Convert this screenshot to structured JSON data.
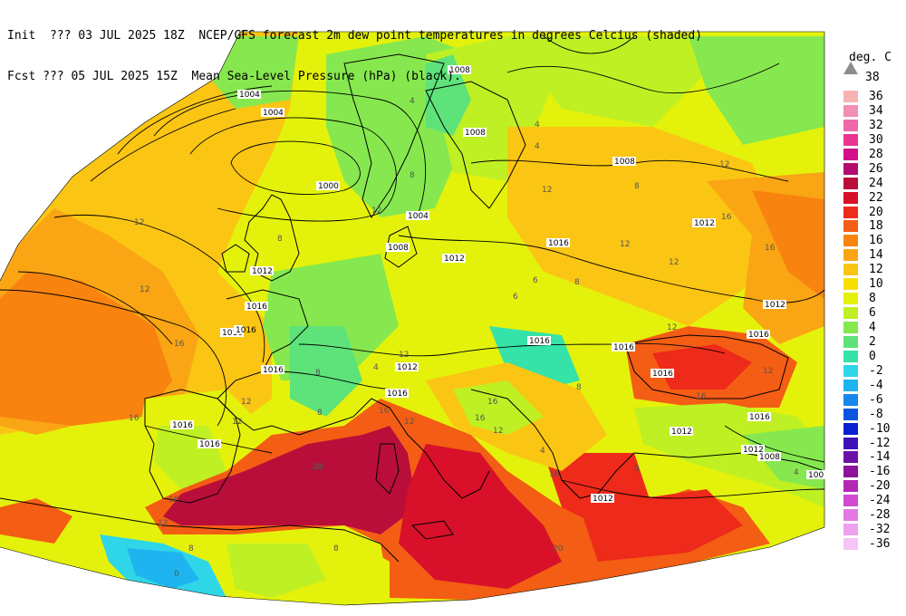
{
  "header": {
    "line1_left": "Init  ??? 03 JUL 2025 18Z",
    "line1_right": "NCEP/GFS forecast 2m dew point temperatures in degrees Celcius (shaded)",
    "line2_left": "Fcst ??? 05 JUL 2025 15Z",
    "line2_right": "Mean Sea-Level Pressure (hPa) (black)."
  },
  "legend": {
    "unit": "deg. C",
    "top_label": "38",
    "bins": [
      {
        "label": "36",
        "color": "#f7b3b3"
      },
      {
        "label": "34",
        "color": "#f28fb4"
      },
      {
        "label": "32",
        "color": "#ef68a7"
      },
      {
        "label": "30",
        "color": "#e83592"
      },
      {
        "label": "28",
        "color": "#d40f8a"
      },
      {
        "label": "26",
        "color": "#b40c6e"
      },
      {
        "label": "24",
        "color": "#b90e3a"
      },
      {
        "label": "22",
        "color": "#d8102a"
      },
      {
        "label": "20",
        "color": "#ee2a1a"
      },
      {
        "label": "18",
        "color": "#f45d14"
      },
      {
        "label": "16",
        "color": "#f8830f"
      },
      {
        "label": "14",
        "color": "#f9a514"
      },
      {
        "label": "12",
        "color": "#fbc514"
      },
      {
        "label": "10",
        "color": "#f7e000"
      },
      {
        "label": "8",
        "color": "#e4f20b"
      },
      {
        "label": "6",
        "color": "#bff023"
      },
      {
        "label": "4",
        "color": "#86e84e"
      },
      {
        "label": "2",
        "color": "#5ee27a"
      },
      {
        "label": "0",
        "color": "#35e2a8"
      },
      {
        "label": "-2",
        "color": "#2fd6e8"
      },
      {
        "label": "-4",
        "color": "#1eb4f0"
      },
      {
        "label": "-6",
        "color": "#1787ea"
      },
      {
        "label": "-8",
        "color": "#0c55e0"
      },
      {
        "label": "-10",
        "color": "#0a1fd0"
      },
      {
        "label": "-12",
        "color": "#3d12b8"
      },
      {
        "label": "-14",
        "color": "#6a12a8"
      },
      {
        "label": "-16",
        "color": "#8c129c"
      },
      {
        "label": "-20",
        "color": "#b229b4"
      },
      {
        "label": "-24",
        "color": "#d04bd0"
      },
      {
        "label": "-28",
        "color": "#e378e3"
      },
      {
        "label": "-32",
        "color": "#eea2ee"
      },
      {
        "label": "-36",
        "color": "#f5c6f5"
      }
    ]
  },
  "map": {
    "isobar_labels": [
      "1008",
      "1004",
      "1004",
      "1000",
      "1008",
      "1008",
      "1004",
      "1012",
      "1008",
      "1012",
      "1016",
      "1012",
      "1012",
      "1016",
      "1016",
      "1016",
      "1016",
      "1016",
      "1016",
      "1012",
      "1016",
      "1016",
      "1016",
      "1016",
      "1012",
      "1008",
      "1012",
      "1012",
      "1016",
      "1016",
      "100"
    ],
    "dewpoint_labels": [
      "4",
      "12",
      "8",
      "4",
      "12",
      "12",
      "8",
      "4",
      "12",
      "16",
      "12",
      "16",
      "8",
      "6",
      "12",
      "16",
      "12",
      "16",
      "12",
      "12",
      "12",
      "8",
      "12",
      "4",
      "16",
      "20",
      "16",
      "8",
      "6",
      "8",
      "20",
      "12",
      "4",
      "16",
      "12",
      "8",
      "8",
      "16",
      "16",
      "12",
      "8",
      "4",
      "0",
      "16",
      "12",
      "8",
      "4",
      "20"
    ]
  }
}
